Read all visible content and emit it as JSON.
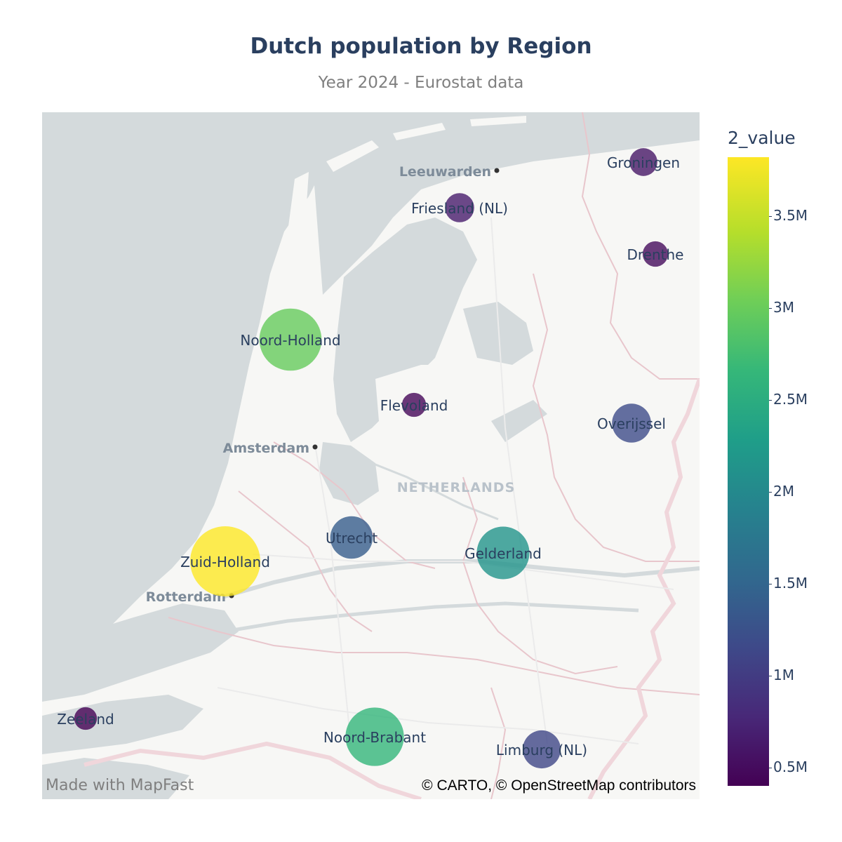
{
  "title": "Dutch population by Region",
  "subtitle": "Year 2024 - Eurostat data",
  "map": {
    "cities": [
      "Leeuwarden",
      "Amsterdam",
      "Rotterdam"
    ],
    "country_label": "NETHERLANDS",
    "regions": [
      {
        "name": "Groningen",
        "value": 600000
      },
      {
        "name": "Friesland (NL)",
        "value": 660000
      },
      {
        "name": "Drenthe",
        "value": 500000
      },
      {
        "name": "Noord-Holland",
        "value": 3000000
      },
      {
        "name": "Flevoland",
        "value": 450000
      },
      {
        "name": "Overijssel",
        "value": 1180000
      },
      {
        "name": "Utrecht",
        "value": 1400000
      },
      {
        "name": "Gelderland",
        "value": 2150000
      },
      {
        "name": "Zuid-Holland",
        "value": 3820000
      },
      {
        "name": "Zeeland",
        "value": 400000
      },
      {
        "name": "Noord-Brabant",
        "value": 2650000
      },
      {
        "name": "Limburg (NL)",
        "value": 1120000
      }
    ],
    "watermark": "Made with MapFast",
    "attribution": "© CARTO, © OpenStreetMap contributors"
  },
  "colorbar": {
    "title": "2_value",
    "ticks": [
      "3.5M",
      "3M",
      "2.5M",
      "2M",
      "1.5M",
      "1M",
      "0.5M"
    ],
    "colorscale": "viridis"
  }
}
